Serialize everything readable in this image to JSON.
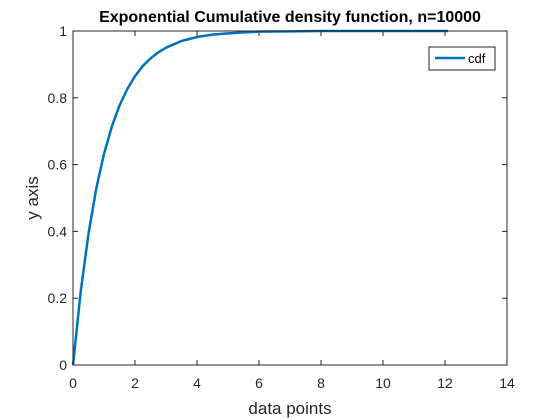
{
  "chart_data": {
    "type": "line",
    "title": "Exponential Cumulative density function, n=10000",
    "xlabel": "data points",
    "ylabel": "y axis",
    "xlim": [
      0,
      14
    ],
    "ylim": [
      0,
      1
    ],
    "xticks": [
      0,
      2,
      4,
      6,
      8,
      10,
      12,
      14
    ],
    "yticks": [
      0,
      0.2,
      0.4,
      0.6,
      0.8,
      1
    ],
    "grid": false,
    "legend_position": "top-right",
    "series": [
      {
        "name": "cdf",
        "color": "#0072BD",
        "x": [
          0,
          0.25,
          0.5,
          0.75,
          1,
          1.25,
          1.5,
          1.75,
          2,
          2.25,
          2.5,
          2.75,
          3,
          3.5,
          4,
          4.5,
          5,
          5.5,
          6,
          7,
          8,
          9,
          10,
          11,
          12.1
        ],
        "y": [
          0,
          0.221,
          0.393,
          0.528,
          0.632,
          0.713,
          0.777,
          0.826,
          0.865,
          0.895,
          0.918,
          0.936,
          0.95,
          0.97,
          0.982,
          0.989,
          0.993,
          0.996,
          0.998,
          0.999,
          1.0,
          1.0,
          1.0,
          1.0,
          1.0
        ]
      }
    ]
  }
}
